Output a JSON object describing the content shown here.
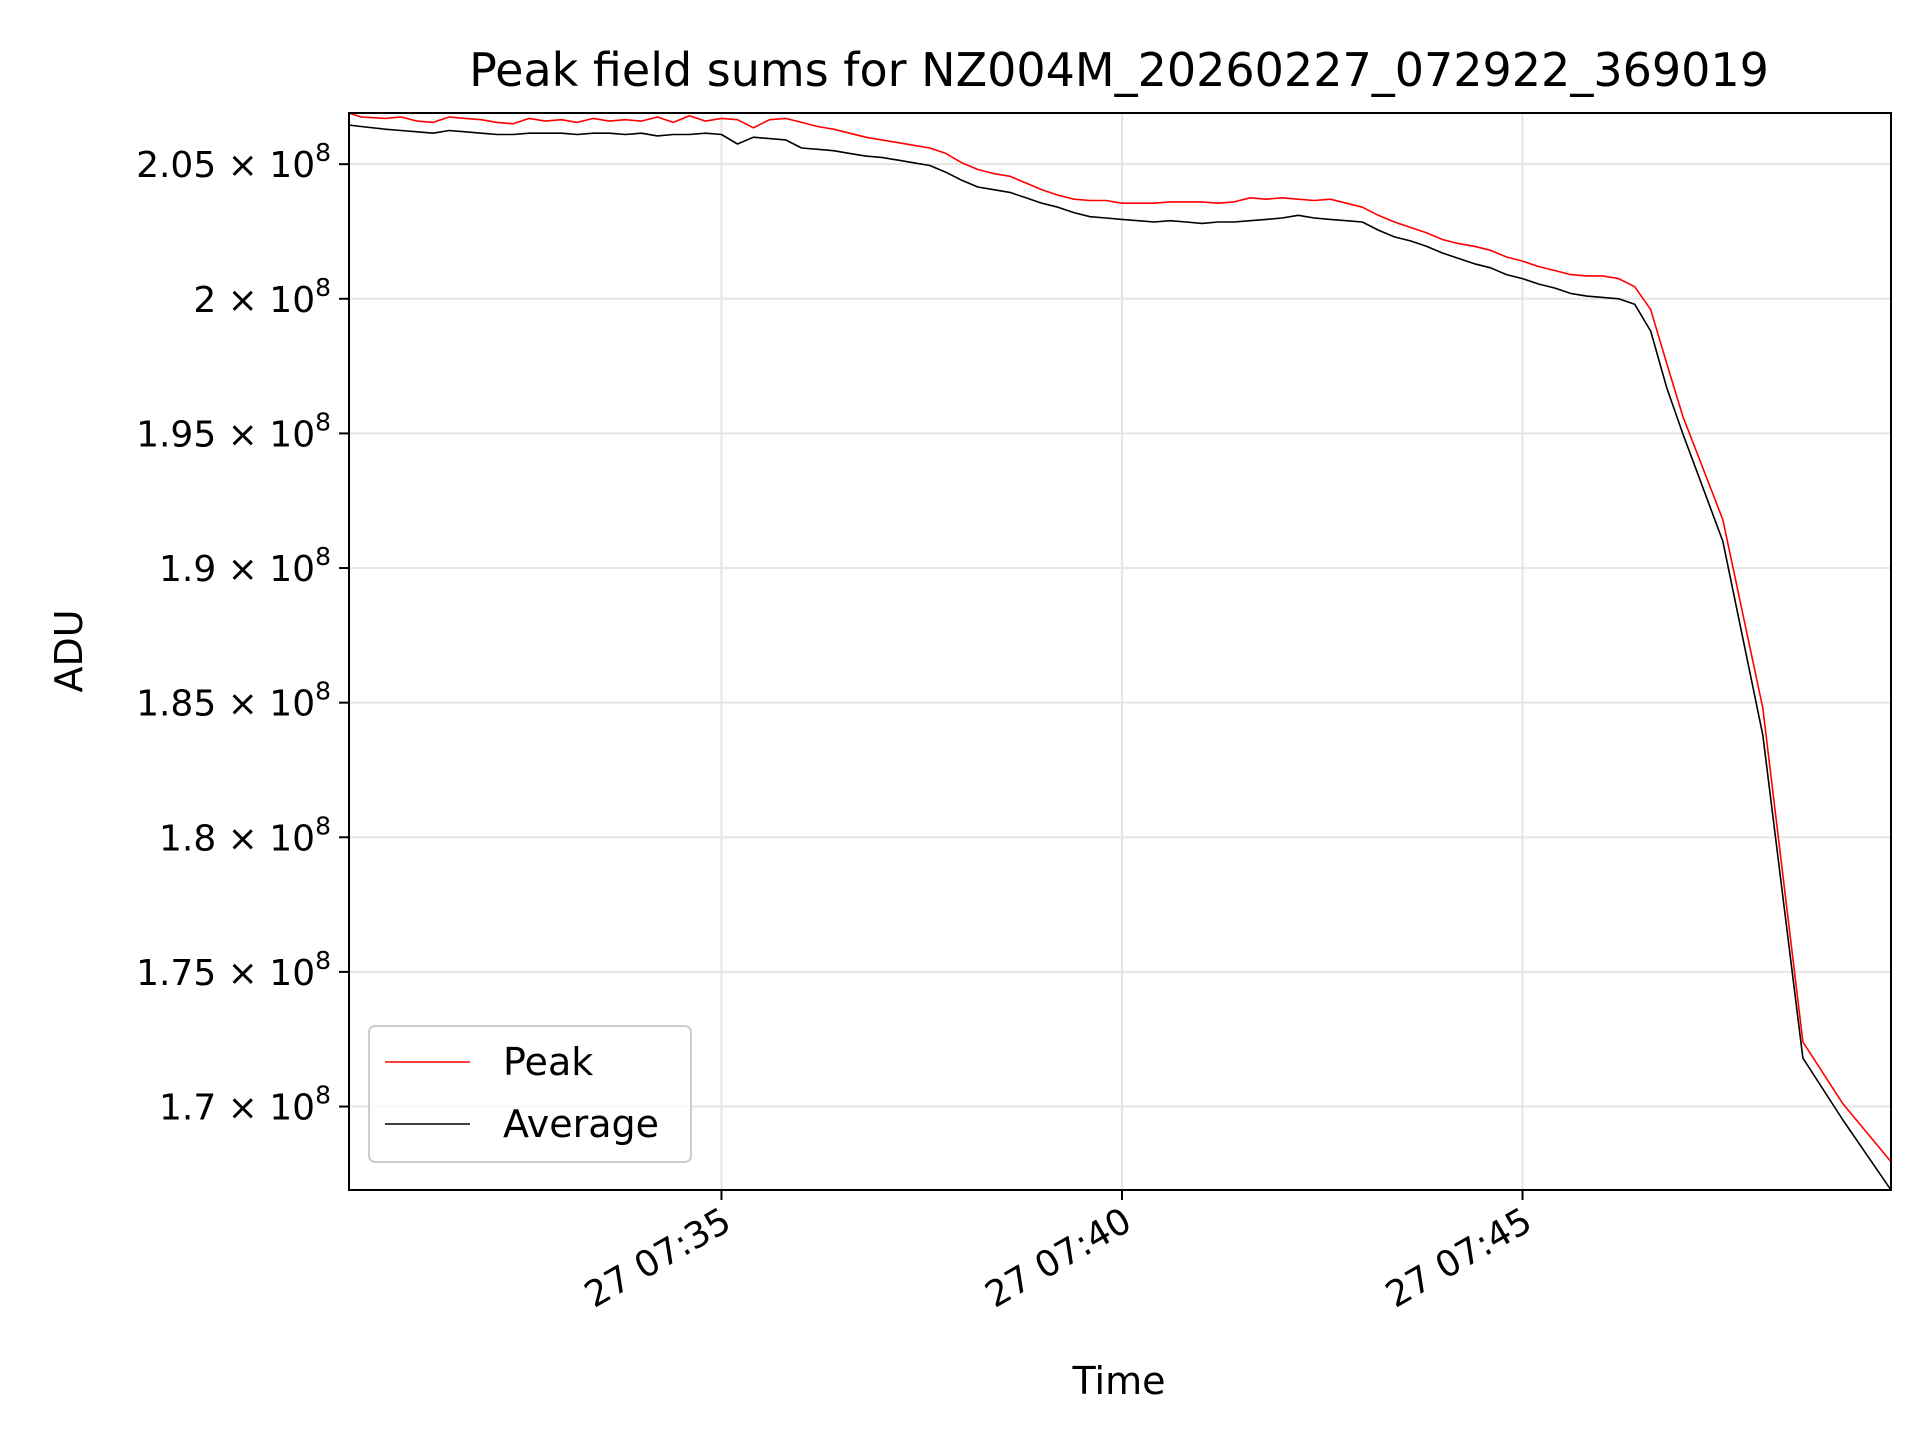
{
  "chart_data": {
    "type": "line",
    "title": "Peak field sums for NZ004M_20260227_072922_369019",
    "xlabel": "Time",
    "ylabel": "ADU",
    "grid": true,
    "legend_position": "lower-left",
    "x_unit": "minutes after 07:30",
    "xlim": [
      0.35,
      19.6
    ],
    "ylim": [
      166900000,
      206900000
    ],
    "x_ticks": [
      {
        "value": 5,
        "label": "27 07:35"
      },
      {
        "value": 10,
        "label": "27 07:40"
      },
      {
        "value": 15,
        "label": "27 07:45"
      }
    ],
    "y_ticks": [
      {
        "value": 170000000,
        "mantissa": "1.7",
        "exponent": "8"
      },
      {
        "value": 175000000,
        "mantissa": "1.75",
        "exponent": "8"
      },
      {
        "value": 180000000,
        "mantissa": "1.8",
        "exponent": "8"
      },
      {
        "value": 185000000,
        "mantissa": "1.85",
        "exponent": "8"
      },
      {
        "value": 190000000,
        "mantissa": "1.9",
        "exponent": "8"
      },
      {
        "value": 195000000,
        "mantissa": "1.95",
        "exponent": "8"
      },
      {
        "value": 200000000,
        "mantissa": "2",
        "exponent": "8"
      },
      {
        "value": 205000000,
        "mantissa": "2.05",
        "exponent": "8"
      }
    ],
    "series": [
      {
        "name": "Peak",
        "color": "#ff0000",
        "x": [
          0.35,
          0.5,
          0.8,
          1.0,
          1.2,
          1.4,
          1.6,
          1.8,
          2.0,
          2.2,
          2.4,
          2.6,
          2.8,
          3.0,
          3.2,
          3.4,
          3.6,
          3.8,
          4.0,
          4.2,
          4.4,
          4.6,
          4.8,
          5.0,
          5.2,
          5.4,
          5.6,
          5.8,
          6.0,
          6.2,
          6.4,
          6.6,
          6.8,
          7.0,
          7.2,
          7.4,
          7.6,
          7.8,
          8.0,
          8.2,
          8.4,
          8.6,
          8.8,
          9.0,
          9.2,
          9.4,
          9.6,
          9.8,
          10.0,
          10.2,
          10.4,
          10.6,
          10.8,
          11.0,
          11.2,
          11.4,
          11.6,
          11.8,
          12.0,
          12.2,
          12.4,
          12.6,
          12.8,
          13.0,
          13.2,
          13.4,
          13.6,
          13.8,
          14.0,
          14.2,
          14.4,
          14.6,
          14.8,
          15.0,
          15.2,
          15.4,
          15.6,
          15.8,
          16.0,
          16.2,
          16.4,
          16.6,
          16.8,
          17.0,
          17.5,
          18.0,
          18.5,
          19.0,
          19.6
        ],
        "values": [
          206900000,
          206750000,
          206700000,
          206750000,
          206600000,
          206550000,
          206750000,
          206700000,
          206650000,
          206550000,
          206500000,
          206700000,
          206600000,
          206650000,
          206550000,
          206700000,
          206600000,
          206650000,
          206600000,
          206750000,
          206550000,
          206800000,
          206600000,
          206700000,
          206650000,
          206350000,
          206650000,
          206700000,
          206550000,
          206400000,
          206300000,
          206150000,
          206000000,
          205900000,
          205800000,
          205700000,
          205600000,
          205400000,
          205050000,
          204800000,
          204650000,
          204550000,
          204300000,
          204050000,
          203850000,
          203700000,
          203650000,
          203650000,
          203550000,
          203550000,
          203550000,
          203600000,
          203600000,
          203600000,
          203550000,
          203600000,
          203750000,
          203700000,
          203750000,
          203700000,
          203650000,
          203700000,
          203550000,
          203400000,
          203100000,
          202850000,
          202650000,
          202450000,
          202200000,
          202050000,
          201950000,
          201800000,
          201550000,
          201400000,
          201200000,
          201050000,
          200900000,
          200850000,
          200850000,
          200750000,
          200450000,
          199600000,
          197600000,
          195650000,
          191800000,
          184800000,
          172400000,
          170100000,
          167950000
        ]
      },
      {
        "name": "Average",
        "color": "#000000",
        "x": [
          0.35,
          0.5,
          0.8,
          1.0,
          1.2,
          1.4,
          1.6,
          1.8,
          2.0,
          2.2,
          2.4,
          2.6,
          2.8,
          3.0,
          3.2,
          3.4,
          3.6,
          3.8,
          4.0,
          4.2,
          4.4,
          4.6,
          4.8,
          5.0,
          5.2,
          5.4,
          5.6,
          5.8,
          6.0,
          6.2,
          6.4,
          6.6,
          6.8,
          7.0,
          7.2,
          7.4,
          7.6,
          7.8,
          8.0,
          8.2,
          8.4,
          8.6,
          8.8,
          9.0,
          9.2,
          9.4,
          9.6,
          9.8,
          10.0,
          10.2,
          10.4,
          10.6,
          10.8,
          11.0,
          11.2,
          11.4,
          11.6,
          11.8,
          12.0,
          12.2,
          12.4,
          12.6,
          12.8,
          13.0,
          13.2,
          13.4,
          13.6,
          13.8,
          14.0,
          14.2,
          14.4,
          14.6,
          14.8,
          15.0,
          15.2,
          15.4,
          15.6,
          15.8,
          16.0,
          16.2,
          16.4,
          16.6,
          16.8,
          17.0,
          17.5,
          18.0,
          18.5,
          19.0,
          19.6
        ],
        "values": [
          206450000,
          206400000,
          206300000,
          206250000,
          206200000,
          206150000,
          206250000,
          206200000,
          206150000,
          206100000,
          206100000,
          206150000,
          206150000,
          206150000,
          206100000,
          206150000,
          206150000,
          206100000,
          206150000,
          206050000,
          206100000,
          206100000,
          206150000,
          206100000,
          205750000,
          206000000,
          205950000,
          205900000,
          205600000,
          205550000,
          205500000,
          205400000,
          205300000,
          205250000,
          205150000,
          205050000,
          204950000,
          204700000,
          204400000,
          204150000,
          204050000,
          203950000,
          203750000,
          203550000,
          203400000,
          203200000,
          203050000,
          203000000,
          202950000,
          202900000,
          202850000,
          202900000,
          202850000,
          202800000,
          202850000,
          202850000,
          202900000,
          202950000,
          203000000,
          203100000,
          203000000,
          202950000,
          202900000,
          202850000,
          202550000,
          202300000,
          202150000,
          201950000,
          201700000,
          201500000,
          201300000,
          201150000,
          200900000,
          200750000,
          200550000,
          200400000,
          200200000,
          200100000,
          200050000,
          200000000,
          199800000,
          198800000,
          196700000,
          195000000,
          191000000,
          183800000,
          171800000,
          169500000,
          166900000
        ]
      }
    ]
  }
}
